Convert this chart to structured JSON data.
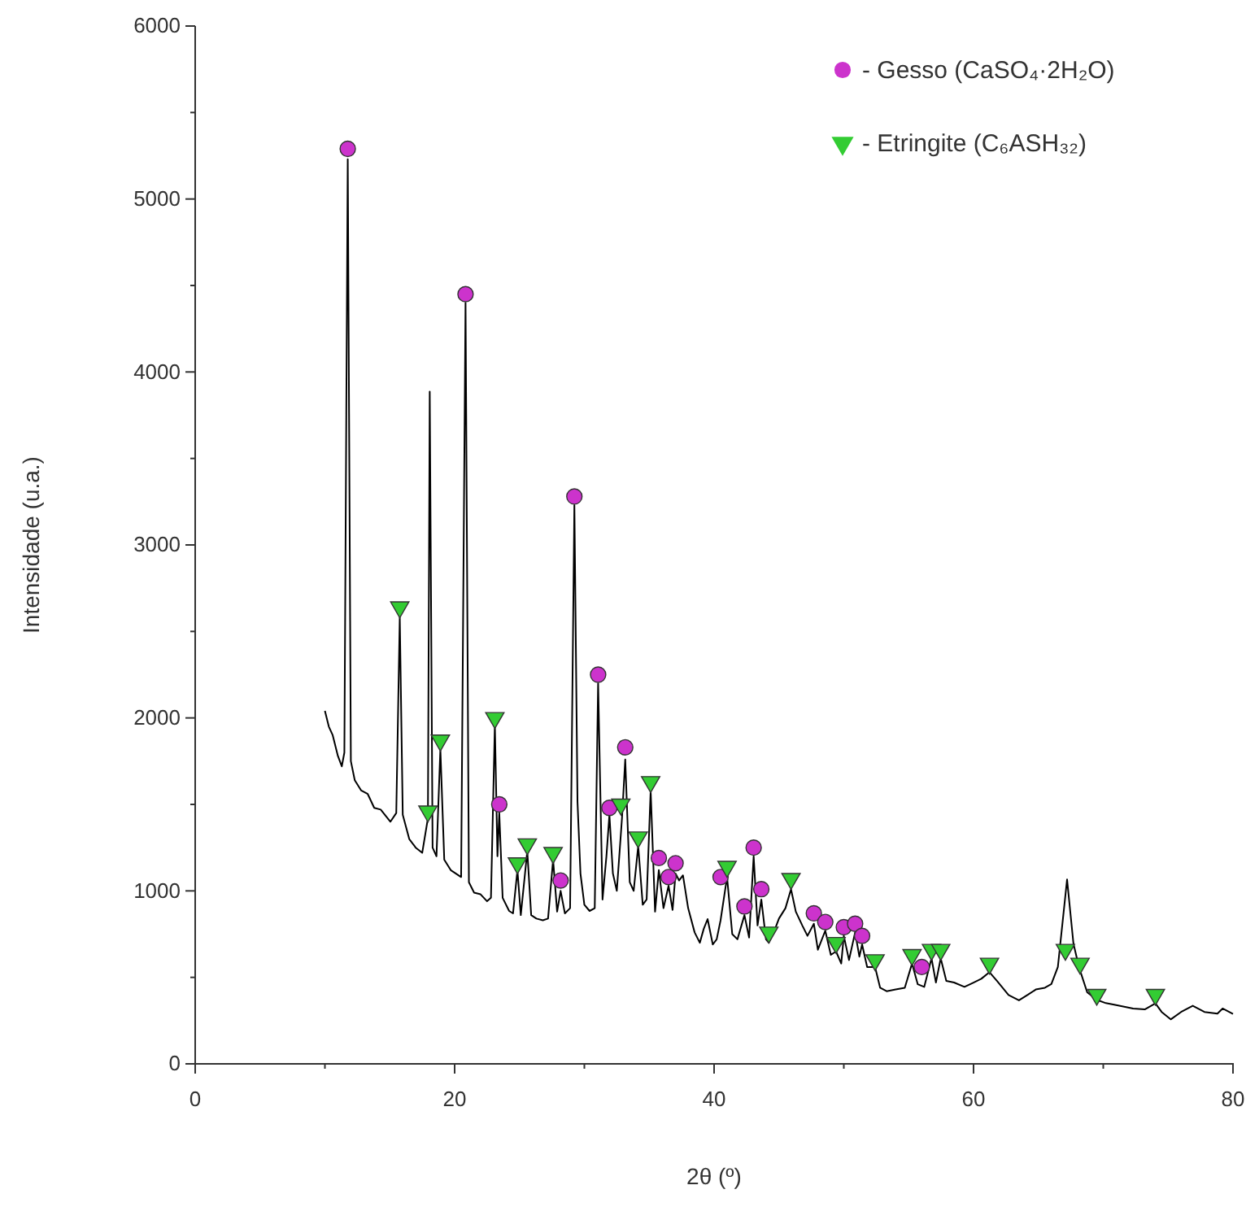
{
  "chart_data": {
    "type": "line",
    "xlabel": "2θ (º)",
    "ylabel": "Intensidade (u.a.)",
    "xlim": [
      0,
      80
    ],
    "xticks": [
      0,
      {
        "value": 10,
        "label": null
      },
      20,
      {
        "value": 30,
        "label": null
      },
      40,
      {
        "value": 50,
        "label": null
      },
      60,
      {
        "value": 70,
        "label": null
      },
      80
    ],
    "ylim": [
      0,
      6000
    ],
    "yticks": [
      0,
      {
        "value": 500,
        "label": null
      },
      1000,
      {
        "value": 1500,
        "label": null
      },
      2000,
      {
        "value": 2500,
        "label": null
      },
      3000,
      {
        "value": 3500,
        "label": null
      },
      4000,
      {
        "value": 4500,
        "label": null
      },
      5000,
      {
        "value": 5500,
        "label": null
      },
      6000
    ],
    "grid": false,
    "legend": "top right",
    "series": [
      {
        "color": "#000000",
        "marker": "none",
        "line_style": "solid",
        "x": [
          10.0,
          10.3,
          10.6,
          11.0,
          11.3,
          11.5,
          11.76,
          12.0,
          12.3,
          12.8,
          13.3,
          13.8,
          14.3,
          15.05,
          15.5,
          15.77,
          16.0,
          16.5,
          17.0,
          17.5,
          17.94,
          18.08,
          18.3,
          18.6,
          18.9,
          19.2,
          19.7,
          20.1,
          20.5,
          20.84,
          21.1,
          21.5,
          22.0,
          22.5,
          22.8,
          23.1,
          23.3,
          23.44,
          23.7,
          24.2,
          24.5,
          24.84,
          25.1,
          25.6,
          25.9,
          26.3,
          26.8,
          27.2,
          27.59,
          27.9,
          28.17,
          28.5,
          28.9,
          29.23,
          29.47,
          29.7,
          30.0,
          30.4,
          30.8,
          31.06,
          31.4,
          31.7,
          31.93,
          32.2,
          32.5,
          32.9,
          33.15,
          33.5,
          33.8,
          34.15,
          34.5,
          34.8,
          35.11,
          35.45,
          35.74,
          36.1,
          36.49,
          36.8,
          37.03,
          37.3,
          37.6,
          38.0,
          38.5,
          38.9,
          39.2,
          39.5,
          39.9,
          40.2,
          40.5,
          41.0,
          41.4,
          41.8,
          42.34,
          42.7,
          43.05,
          43.35,
          43.64,
          44.0,
          44.22,
          44.6,
          45.0,
          45.5,
          45.93,
          46.3,
          46.8,
          47.2,
          47.69,
          48.0,
          48.57,
          49.0,
          49.4,
          49.8,
          50.0,
          50.4,
          50.87,
          51.2,
          51.41,
          51.8,
          52.41,
          52.8,
          53.3,
          54.0,
          54.7,
          55.26,
          55.7,
          56.2,
          56.76,
          57.1,
          57.47,
          57.9,
          58.5,
          59.3,
          60.0,
          60.6,
          61.23,
          61.8,
          62.7,
          63.5,
          64.2,
          64.8,
          65.5,
          66.0,
          66.5,
          67.21,
          67.7,
          68.0,
          68.21,
          68.76,
          69.5,
          70.2,
          71.0,
          72.3,
          73.2,
          74.02,
          74.5,
          75.2,
          76.0,
          76.9,
          77.8,
          78.8,
          79.2,
          80.0
        ],
        "values": [
          2041,
          1950,
          1900,
          1780,
          1720,
          1800,
          5230,
          1750,
          1640,
          1580,
          1560,
          1480,
          1470,
          1400,
          1450,
          2580,
          1440,
          1300,
          1250,
          1220,
          1420,
          3886,
          1250,
          1200,
          1820,
          1180,
          1120,
          1100,
          1080,
          4400,
          1050,
          990,
          980,
          940,
          960,
          1960,
          1200,
          1450,
          960,
          884,
          870,
          1120,
          860,
          1230,
          860,
          840,
          830,
          840,
          1180,
          880,
          1000,
          870,
          900,
          3230,
          1515,
          1100,
          920,
          884,
          900,
          2200,
          950,
          1200,
          1440,
          1100,
          1000,
          1420,
          1760,
          1050,
          1000,
          1260,
          920,
          950,
          1580,
          880,
          1120,
          900,
          1030,
          890,
          1100,
          1060,
          1090,
          900,
          760,
          700,
          780,
          837,
          690,
          720,
          830,
          1080,
          750,
          720,
          860,
          730,
          1200,
          800,
          950,
          720,
          700,
          760,
          840,
          900,
          1010,
          880,
          800,
          740,
          810,
          660,
          770,
          630,
          650,
          580,
          740,
          600,
          760,
          620,
          690,
          560,
          560,
          440,
          420,
          430,
          440,
          580,
          460,
          445,
          610,
          470,
          610,
          480,
          470,
          445,
          470,
          492,
          530,
          480,
          398,
          367,
          400,
          430,
          440,
          461,
          560,
          1066,
          696,
          600,
          540,
          414,
          370,
          351,
          340,
          320,
          315,
          350,
          300,
          257,
          300,
          336,
          300,
          290,
          320,
          289
        ]
      },
      {
        "type": "scatter",
        "name": "- Gesso (CaSO₄·2H₂O)",
        "color": "#cc33cc",
        "marker": "circle",
        "x": [
          11.76,
          20.84,
          29.23,
          31.06,
          23.44,
          31.93,
          33.15,
          28.17,
          35.74,
          36.49,
          37.03,
          40.5,
          42.34,
          43.05,
          43.64,
          47.69,
          48.57,
          50.0,
          50.87,
          51.41,
          56.01
        ],
        "values": [
          5290,
          4450,
          3280,
          2250,
          1500,
          1480,
          1830,
          1060,
          1190,
          1080,
          1160,
          1080,
          910,
          1250,
          1010,
          870,
          820,
          790,
          810,
          740,
          560
        ]
      },
      {
        "type": "scatter",
        "name": "- Etringite (C₆ASH₃₂)",
        "color": "#33cc33",
        "marker": "triangle",
        "x": [
          15.77,
          17.94,
          18.9,
          23.1,
          24.84,
          25.6,
          27.59,
          32.81,
          34.15,
          35.11,
          41.0,
          44.22,
          45.93,
          49.4,
          52.41,
          55.26,
          56.76,
          57.47,
          61.23,
          67.08,
          68.21,
          69.5,
          74.02
        ],
        "values": [
          2640,
          1460,
          1870,
          2000,
          1160,
          1270,
          1220,
          1500,
          1310,
          1630,
          1140,
          760,
          1070,
          700,
          600,
          630,
          660,
          660,
          580,
          660,
          580,
          400,
          400
        ]
      }
    ]
  }
}
